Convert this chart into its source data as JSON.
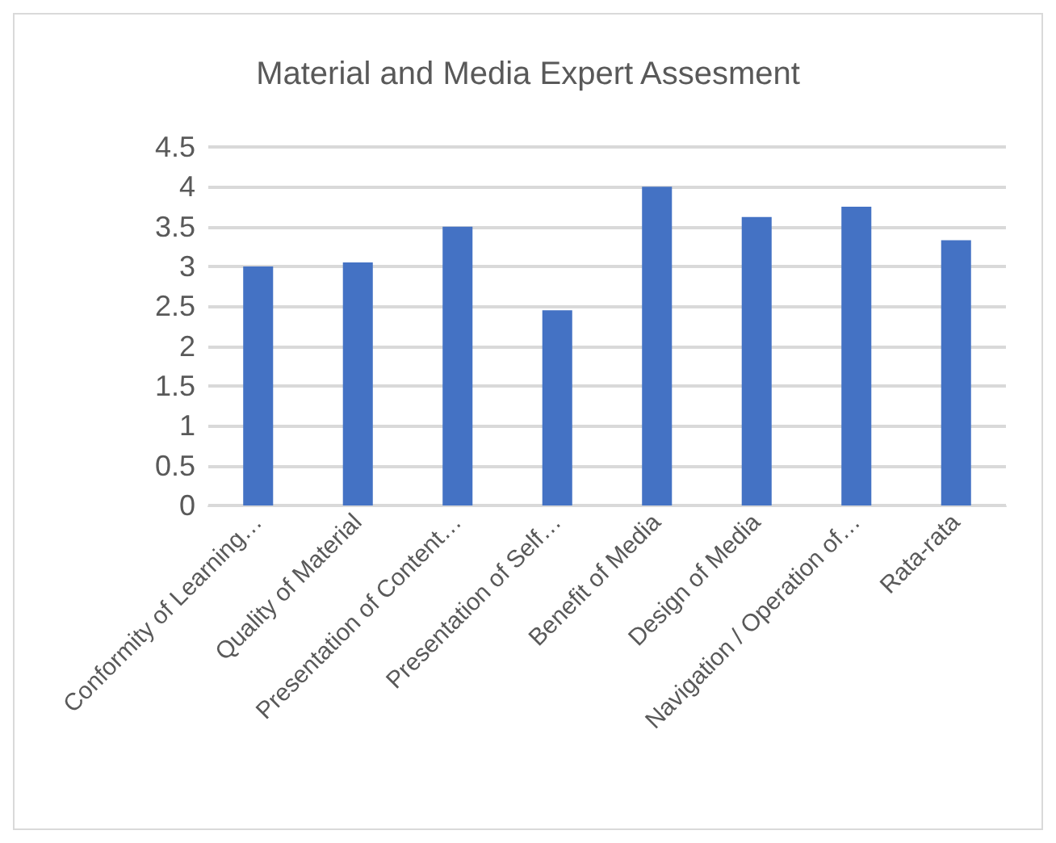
{
  "chart_data": {
    "type": "bar",
    "title": "Material and Media Expert Assesment",
    "categories": [
      "Conformity of Learning…",
      "Quality of Material",
      "Presentation of Content…",
      "Presentation of Self…",
      "Benefit of Media",
      "Design of Media",
      "Navigation / Operation of…",
      "Rata-rata"
    ],
    "values": [
      3.0,
      3.05,
      3.5,
      2.45,
      4.0,
      3.62,
      3.75,
      3.33
    ],
    "color": "#4472c4",
    "ylim": [
      0,
      4.5
    ],
    "yticks": [
      0,
      0.5,
      1,
      1.5,
      2,
      2.5,
      3,
      3.5,
      4,
      4.5
    ],
    "grid": true
  }
}
